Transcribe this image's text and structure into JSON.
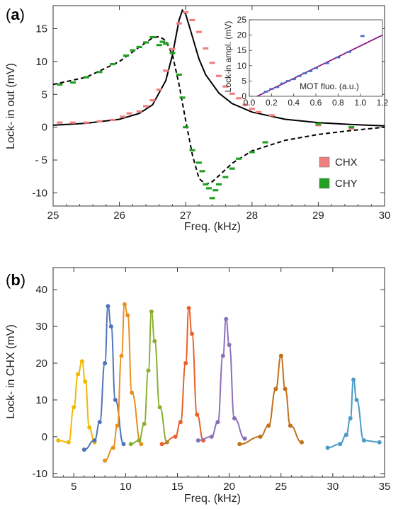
{
  "panel_a": {
    "label_open": "(",
    "label_letter": "a",
    "label_close": ")",
    "legend": [
      {
        "label": "CHX",
        "color": "#f08080"
      },
      {
        "label": "CHY",
        "color": "#22a022"
      }
    ]
  },
  "panel_b": {
    "label_open": "(",
    "label_letter": "b",
    "label_close": ")"
  },
  "chart_data": [
    {
      "type": "scatter",
      "xlabel": "Freq. (kHz)",
      "ylabel": "Lock- in out (mV)",
      "xlim": [
        25,
        30
      ],
      "ylim": [
        -12,
        18.5
      ],
      "xticks": [
        "25",
        "26",
        "27",
        "28",
        "29",
        "30"
      ],
      "yticks": [
        "-10",
        "- 5",
        "0",
        "5",
        "10",
        "15"
      ],
      "ytick_values": [
        -10,
        -5,
        0,
        5,
        10,
        15
      ],
      "series": [
        {
          "name": "CHX",
          "color": "#f08080",
          "x": [
            25.1,
            25.3,
            25.5,
            25.7,
            25.9,
            26.05,
            26.15,
            26.3,
            26.4,
            26.5,
            26.6,
            26.7,
            26.8,
            26.9,
            27.0,
            27.1,
            27.2,
            27.3,
            27.4,
            27.5,
            27.6,
            27.7,
            27.8,
            27.9,
            28.0,
            28.1,
            28.3,
            29.0,
            29.5
          ],
          "y": [
            0.7,
            0.7,
            0.7,
            0.9,
            1.1,
            1.6,
            2.1,
            2.4,
            3.2,
            4.1,
            5.7,
            8.6,
            11.9,
            15.8,
            17.5,
            16.3,
            14.5,
            12.0,
            9.8,
            7.8,
            6.2,
            5.1,
            4.4,
            3.4,
            2.8,
            2.3,
            1.8,
            0.3,
            -0.2
          ]
        },
        {
          "name": "CHY",
          "color": "#22a022",
          "x": [
            25.1,
            25.3,
            25.5,
            25.7,
            25.9,
            26.1,
            26.2,
            26.3,
            26.4,
            26.5,
            26.6,
            26.65,
            26.7,
            26.8,
            26.9,
            26.95,
            27.0,
            27.1,
            27.2,
            27.25,
            27.3,
            27.35,
            27.4,
            27.45,
            27.5,
            27.6,
            27.7,
            27.8,
            28.0,
            28.2,
            29.0,
            29.5
          ],
          "y": [
            6.5,
            6.8,
            7.6,
            8.4,
            9.6,
            10.9,
            11.7,
            12.2,
            12.9,
            13.7,
            12.5,
            13.0,
            12.7,
            11.3,
            8.0,
            4.5,
            0.0,
            -3.5,
            -5.4,
            -6.7,
            -8.7,
            -9.3,
            -10.8,
            -9.6,
            -8.7,
            -7.6,
            -6.3,
            -4.8,
            -3.8,
            -2.3,
            0.5,
            0.0
          ]
        },
        {
          "name": "",
          "kind": "fit-line",
          "style": "solid",
          "color": "#000000",
          "x": [
            25.0,
            25.5,
            26.0,
            26.3,
            26.5,
            26.7,
            26.8,
            26.9,
            26.95,
            27.0,
            27.1,
            27.2,
            27.3,
            27.5,
            27.7,
            28.0,
            28.5,
            29.0,
            29.5,
            30.0
          ],
          "y": [
            0.3,
            0.6,
            1.2,
            2.1,
            3.4,
            7.1,
            11.0,
            16.3,
            17.8,
            17.2,
            13.8,
            10.4,
            8.0,
            5.2,
            3.6,
            2.3,
            1.2,
            0.7,
            0.4,
            0.2
          ]
        },
        {
          "name": "",
          "kind": "fit-line",
          "style": "dashed",
          "color": "#000000",
          "x": [
            25.0,
            25.5,
            26.0,
            26.3,
            26.5,
            26.6,
            26.7,
            26.8,
            26.9,
            27.0,
            27.1,
            27.2,
            27.3,
            27.4,
            27.5,
            27.7,
            28.0,
            28.5,
            29.0,
            29.5,
            30.0
          ],
          "y": [
            6.5,
            7.6,
            10.0,
            12.2,
            13.6,
            13.8,
            13.2,
            11.0,
            6.5,
            1.0,
            -4.2,
            -7.8,
            -8.7,
            -8.3,
            -7.4,
            -5.5,
            -3.6,
            -2.0,
            -1.1,
            -0.5,
            0.0
          ]
        }
      ]
    },
    {
      "type": "line",
      "inset": true,
      "xlabel": "MOT fluo. (a.u.)",
      "ylabel": "Lock-in ampl. (mV)",
      "xlim": [
        0.0,
        1.2
      ],
      "ylim": [
        0,
        25
      ],
      "xticks": [
        "0.0",
        "0.2",
        "0.4",
        "0.6",
        "0.8",
        "1.0",
        "1.2"
      ],
      "yticks": [
        "0",
        "5",
        "10",
        "15",
        "20",
        "25"
      ],
      "series": [
        {
          "name": "",
          "kind": "fit-line",
          "color": "#8b1a8b",
          "x": [
            0.07,
            1.2
          ],
          "y": [
            0,
            20
          ]
        },
        {
          "name": "",
          "kind": "points",
          "color": "#4a6fc0",
          "x": [
            0.15,
            0.2,
            0.25,
            0.3,
            0.35,
            0.4,
            0.45,
            0.5,
            0.55,
            0.6,
            0.7,
            0.8,
            0.9,
            1.02
          ],
          "y": [
            1.5,
            2.4,
            3.0,
            4.2,
            5.0,
            5.6,
            6.6,
            7.5,
            8.2,
            9.2,
            10.8,
            12.7,
            14.5,
            19.7
          ]
        }
      ]
    },
    {
      "type": "line",
      "xlabel": "Freq. (kHz)",
      "ylabel": "Lock- in CHX (mV)",
      "xlim": [
        3,
        35
      ],
      "ylim": [
        -11,
        46
      ],
      "xticks": [
        "5",
        "10",
        "15",
        "20",
        "25",
        "30",
        "35"
      ],
      "yticks": [
        "-10",
        "0",
        "10",
        "20",
        "30",
        "40"
      ],
      "series": [
        {
          "name": "",
          "color": "#f2b800",
          "x": [
            3.5,
            4.5,
            5.0,
            5.4,
            5.8,
            6.1,
            6.5,
            7.0
          ],
          "y": [
            -1.0,
            -1.5,
            8.0,
            17.0,
            20.5,
            15.0,
            2.5,
            -1.5
          ]
        },
        {
          "name": "",
          "color": "#4f74b8",
          "x": [
            6.0,
            7.0,
            7.5,
            8.0,
            8.3,
            8.6,
            9.0,
            9.8
          ],
          "y": [
            -3.5,
            -1.0,
            4.0,
            20.0,
            35.5,
            30.0,
            10.0,
            -2.0
          ]
        },
        {
          "name": "",
          "color": "#e89020",
          "x": [
            8.0,
            8.8,
            9.2,
            9.6,
            9.9,
            10.2,
            10.6,
            11.5
          ],
          "y": [
            -6.5,
            -3.0,
            3.0,
            22.0,
            36.0,
            33.0,
            12.0,
            -2.0
          ]
        },
        {
          "name": "",
          "color": "#8ab030",
          "x": [
            10.5,
            11.3,
            11.8,
            12.2,
            12.5,
            12.8,
            13.3,
            14.0
          ],
          "y": [
            -2.0,
            -1.0,
            3.5,
            18.0,
            34.0,
            26.0,
            8.0,
            -1.5
          ]
        },
        {
          "name": "",
          "color": "#e8602a",
          "x": [
            13.5,
            14.8,
            15.3,
            15.8,
            16.1,
            16.4,
            16.9,
            17.5
          ],
          "y": [
            -2.0,
            0.0,
            4.0,
            20.0,
            35.0,
            28.0,
            6.0,
            -1.0
          ]
        },
        {
          "name": "",
          "color": "#8b70b8",
          "x": [
            17.0,
            18.3,
            18.9,
            19.4,
            19.7,
            20.0,
            20.5,
            21.5
          ],
          "y": [
            -1.0,
            0.0,
            4.0,
            22.0,
            32.0,
            25.0,
            5.0,
            -0.5
          ]
        },
        {
          "name": "",
          "color": "#c0701a",
          "x": [
            21.0,
            23.0,
            23.8,
            24.5,
            25.0,
            25.4,
            25.9,
            27.0
          ],
          "y": [
            -2.0,
            0.0,
            3.0,
            13.0,
            22.0,
            13.0,
            3.0,
            -1.5
          ]
        },
        {
          "name": "",
          "color": "#4a9ac8",
          "x": [
            29.5,
            30.7,
            31.3,
            31.7,
            32.0,
            32.3,
            33.0,
            34.5
          ],
          "y": [
            -3.0,
            -2.0,
            0.5,
            5.0,
            15.5,
            10.0,
            -1.0,
            -1.5
          ]
        }
      ]
    }
  ]
}
